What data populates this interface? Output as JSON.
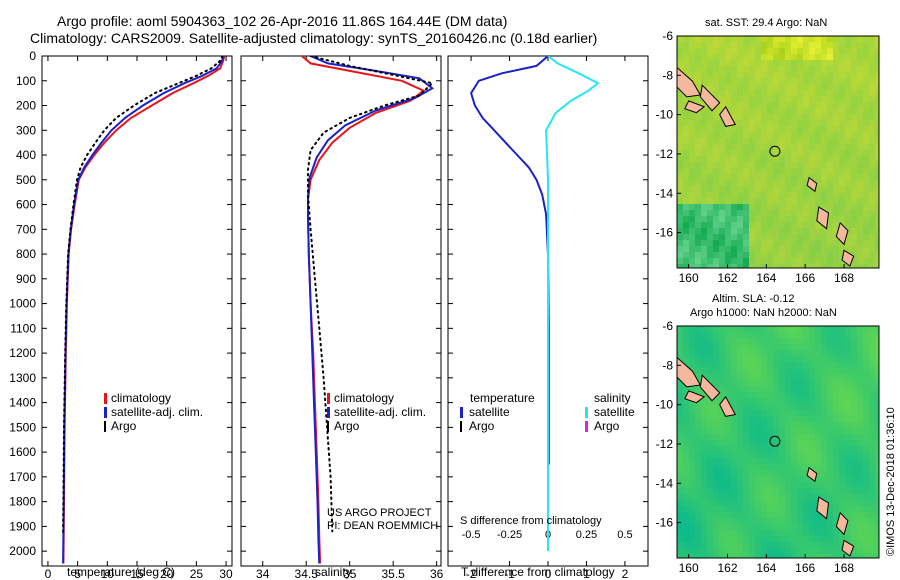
{
  "titles": {
    "line1": "Argo profile: aoml 5904363_102 26-Apr-2016 11.86S 164.44E (DM data)",
    "line2": "Climatology: CARS2009. Satellite-adjusted climatology: synTS_20160426.nc (0.18d earlier)"
  },
  "colors": {
    "climatology": "#e8141c",
    "satellite": "#1a22c8",
    "argo": "#000000",
    "salinity_sat": "#28e6f0",
    "salinity_argo": "#e020e0"
  },
  "depth_axis": {
    "ticks": [
      "0",
      "100",
      "200",
      "300",
      "400",
      "500",
      "600",
      "700",
      "800",
      "900",
      "1000",
      "1100",
      "1200",
      "1300",
      "1400",
      "1500",
      "1600",
      "1700",
      "1800",
      "1900",
      "2000"
    ],
    "range": [
      0,
      2060
    ]
  },
  "chart_data": [
    {
      "type": "line",
      "xlabel": "temperature (deg C)",
      "xlim": [
        -1,
        31
      ],
      "xticks": [
        "0",
        "5",
        "10",
        "15",
        "20",
        "25",
        "30"
      ],
      "ylim": [
        0,
        2060
      ],
      "legend": [
        "climatology",
        "satellite-adj. clim.",
        "Argo"
      ],
      "series": [
        {
          "name": "climatology",
          "x": [
            29.7,
            29.5,
            29.0,
            27.0,
            24.5,
            21.0,
            17.5,
            14.0,
            11.5,
            9.5,
            7.8,
            6.3,
            5.2,
            4.5,
            3.9,
            3.5,
            3.2,
            3.0,
            2.8,
            2.7,
            2.6
          ],
          "y": [
            0,
            20,
            50,
            80,
            110,
            150,
            200,
            250,
            300,
            350,
            400,
            450,
            500,
            600,
            700,
            800,
            1000,
            1200,
            1500,
            1800,
            2050
          ]
        },
        {
          "name": "satellite-adj. clim.",
          "x": [
            29.6,
            29.3,
            28.4,
            26.0,
            23.0,
            19.5,
            16.0,
            13.0,
            10.7,
            9.0,
            7.5,
            6.1,
            5.1,
            4.4,
            3.85,
            3.45,
            3.15,
            2.95,
            2.75,
            2.65,
            2.55
          ],
          "y": [
            0,
            20,
            50,
            80,
            110,
            150,
            200,
            250,
            300,
            350,
            400,
            450,
            500,
            600,
            700,
            800,
            1000,
            1200,
            1500,
            1800,
            2050
          ]
        },
        {
          "name": "Argo",
          "x": [
            29.4,
            29.0,
            27.5,
            25.0,
            22.0,
            18.0,
            14.5,
            11.5,
            9.5,
            8.0,
            6.6,
            5.5,
            4.9,
            4.3,
            3.8,
            3.4,
            3.1,
            2.9,
            2.7,
            2.6,
            2.55
          ],
          "y": [
            0,
            20,
            50,
            80,
            110,
            150,
            200,
            250,
            300,
            350,
            400,
            450,
            500,
            600,
            700,
            800,
            1000,
            1200,
            1500,
            1800,
            1930
          ]
        }
      ]
    },
    {
      "type": "line",
      "xlabel": "salinity",
      "xlim": [
        33.75,
        36.05
      ],
      "xticks": [
        "34",
        "34.5",
        "35",
        "35.5",
        "36"
      ],
      "ylim": [
        0,
        2060
      ],
      "legend": [
        "climatology",
        "satellite-adj. clim.",
        "Argo"
      ],
      "annotations": [
        "US ARGO PROJECT",
        "PI: DEAN ROEMMICH"
      ],
      "series": [
        {
          "name": "climatology",
          "x": [
            34.45,
            34.55,
            35.0,
            35.6,
            35.85,
            35.7,
            35.3,
            35.0,
            34.8,
            34.65,
            34.55,
            34.52,
            34.52,
            34.53,
            34.55,
            34.58,
            34.6,
            34.62,
            34.64,
            34.65,
            34.66
          ],
          "y": [
            0,
            30,
            60,
            100,
            140,
            180,
            230,
            290,
            350,
            420,
            500,
            580,
            650,
            800,
            1000,
            1200,
            1400,
            1600,
            1800,
            1950,
            2050
          ]
        },
        {
          "name": "satellite-adj. clim.",
          "x": [
            34.55,
            34.75,
            35.3,
            35.8,
            35.95,
            35.75,
            35.3,
            34.95,
            34.75,
            34.62,
            34.54,
            34.52,
            34.52,
            34.53,
            34.55,
            34.57,
            34.59,
            34.61,
            34.63,
            34.64,
            34.65
          ],
          "y": [
            0,
            30,
            60,
            90,
            130,
            170,
            220,
            280,
            340,
            410,
            490,
            570,
            650,
            800,
            1000,
            1200,
            1400,
            1600,
            1800,
            1950,
            2050
          ]
        },
        {
          "name": "Argo",
          "x": [
            34.55,
            35.0,
            35.55,
            35.95,
            35.8,
            35.4,
            35.0,
            34.7,
            34.55,
            34.52,
            34.52,
            34.55,
            34.6,
            34.65,
            34.7,
            34.74,
            34.78,
            34.8
          ],
          "y": [
            0,
            40,
            80,
            110,
            160,
            200,
            250,
            310,
            380,
            460,
            560,
            700,
            900,
            1100,
            1300,
            1500,
            1700,
            1920
          ]
        }
      ]
    },
    {
      "type": "line",
      "xlabel": "T difference from climatology",
      "xlabel2": "S difference from climatology",
      "xlim": [
        -2.6,
        2.6
      ],
      "xticks": [
        "-2",
        "-1",
        "0",
        "1",
        "2"
      ],
      "xticks2": [
        "-0.5",
        "-0.25",
        "0",
        "0.25",
        "0.5"
      ],
      "ylim": [
        0,
        2060
      ],
      "legend_temperature": {
        "title": "temperature",
        "items": [
          "satellite",
          "Argo"
        ]
      },
      "legend_salinity": {
        "title": "salinity",
        "items": [
          "satellite",
          "Argo"
        ]
      },
      "series": [
        {
          "name": "temperature satellite",
          "x": [
            0,
            -0.3,
            -1.2,
            -1.8,
            -2.0,
            -1.9,
            -1.7,
            -1.4,
            -1.1,
            -0.8,
            -0.5,
            -0.3,
            -0.15,
            -0.05,
            0.0,
            0.02,
            0.02,
            0.02
          ],
          "y": [
            0,
            40,
            70,
            100,
            150,
            200,
            250,
            300,
            350,
            400,
            450,
            500,
            560,
            640,
            800,
            1100,
            1400,
            1650
          ]
        },
        {
          "name": "salinity satellite",
          "x": [
            0,
            0.25,
            0.8,
            1.3,
            1.05,
            0.6,
            0.2,
            -0.05,
            0.0,
            0.0,
            0.0,
            0.0,
            0.0
          ],
          "y": [
            0,
            30,
            70,
            110,
            140,
            180,
            230,
            300,
            500,
            800,
            1200,
            1600,
            2000
          ]
        }
      ]
    }
  ],
  "maps": [
    {
      "title": "sat. SST: 29.4 Argo: NaN",
      "xticks": [
        "160",
        "162",
        "164",
        "166",
        "168"
      ],
      "yticks": [
        "-6",
        "-8",
        "-10",
        "-12",
        "-14",
        "-16"
      ]
    },
    {
      "title": "Altim. SLA: -0.12",
      "subtitle": "Argo h1000: NaN h2000: NaN",
      "xticks": [
        "160",
        "162",
        "164",
        "166",
        "168"
      ],
      "yticks": [
        "-6",
        "-8",
        "-10",
        "-12",
        "-14",
        "-16"
      ]
    }
  ],
  "credit": "©IMOS 13-Dec-2018 01:36:10"
}
